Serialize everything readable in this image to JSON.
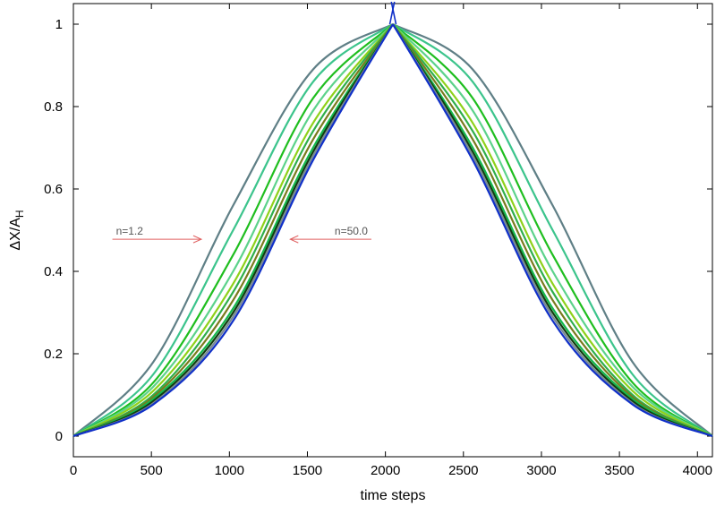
{
  "chart_data": {
    "type": "line",
    "title": "",
    "xlabel": "time steps",
    "ylabel": "ΔX/A_H",
    "ylabel_main": "ΔX/A",
    "ylabel_sub": "H",
    "xlim": [
      0,
      4096
    ],
    "ylim": [
      -0.05,
      1.05
    ],
    "xticks": [
      0,
      500,
      1000,
      1500,
      2000,
      2500,
      3000,
      3500,
      4000
    ],
    "yticks": [
      0,
      0.2,
      0.4,
      0.6,
      0.8,
      1
    ],
    "ytick_labels": [
      "0",
      "0.2",
      "0.4",
      "0.6",
      "0.8",
      "1"
    ],
    "grid": false,
    "peak_x": 2048,
    "series": [
      {
        "color": "#5f7f86",
        "x": [
          0,
          512,
          1024,
          1536,
          2048,
          2560,
          3072,
          3584,
          4096
        ],
        "values": [
          0,
          0.18,
          0.56,
          0.89,
          1,
          0.89,
          0.56,
          0.18,
          0
        ]
      },
      {
        "color": "#3cc48c",
        "x": [
          0,
          512,
          1024,
          1536,
          2048,
          2560,
          3072,
          3584,
          4096
        ],
        "values": [
          0,
          0.15,
          0.5,
          0.86,
          1,
          0.86,
          0.5,
          0.15,
          0
        ]
      },
      {
        "color": "#1fbe1f",
        "x": [
          0,
          512,
          1024,
          1536,
          2048,
          2560,
          3072,
          3584,
          4096
        ],
        "values": [
          0,
          0.13,
          0.44,
          0.82,
          1,
          0.82,
          0.44,
          0.13,
          0
        ]
      },
      {
        "color": "#5cd28a",
        "x": [
          0,
          512,
          1024,
          1536,
          2048,
          2560,
          3072,
          3584,
          4096
        ],
        "values": [
          0,
          0.12,
          0.4,
          0.79,
          1,
          0.79,
          0.4,
          0.12,
          0
        ]
      },
      {
        "color": "#8ed11a",
        "x": [
          0,
          512,
          1024,
          1536,
          2048,
          2560,
          3072,
          3584,
          4096
        ],
        "values": [
          0,
          0.11,
          0.37,
          0.76,
          1,
          0.76,
          0.37,
          0.11,
          0
        ]
      },
      {
        "color": "#2fae4a",
        "x": [
          0,
          512,
          1024,
          1536,
          2048,
          2560,
          3072,
          3584,
          4096
        ],
        "values": [
          0,
          0.1,
          0.35,
          0.74,
          1,
          0.74,
          0.35,
          0.1,
          0
        ]
      },
      {
        "color": "#7a7a1e",
        "x": [
          0,
          512,
          1024,
          1536,
          2048,
          2560,
          3072,
          3584,
          4096
        ],
        "values": [
          0,
          0.095,
          0.33,
          0.72,
          1,
          0.72,
          0.33,
          0.095,
          0
        ]
      },
      {
        "color": "#14b84c",
        "x": [
          0,
          512,
          1024,
          1536,
          2048,
          2560,
          3072,
          3584,
          4096
        ],
        "values": [
          0,
          0.09,
          0.31,
          0.7,
          1,
          0.7,
          0.31,
          0.09,
          0
        ]
      },
      {
        "color": "#0f3f0f",
        "x": [
          0,
          512,
          1024,
          1536,
          2048,
          2560,
          3072,
          3584,
          4096
        ],
        "values": [
          0,
          0.085,
          0.3,
          0.69,
          1,
          0.69,
          0.3,
          0.085,
          0
        ]
      },
      {
        "color": "#7a8a95",
        "x": [
          0,
          512,
          1024,
          1536,
          2048,
          2560,
          3072,
          3584,
          4096
        ],
        "values": [
          0,
          0.08,
          0.29,
          0.68,
          1,
          0.68,
          0.29,
          0.08,
          0
        ]
      },
      {
        "color": "#1030c8",
        "x": [
          0,
          512,
          1024,
          1536,
          2048,
          2560,
          3072,
          3584,
          4096
        ],
        "values": [
          0,
          0.077,
          0.28,
          0.67,
          1,
          0.67,
          0.28,
          0.077,
          0
        ]
      }
    ],
    "annotations": [
      {
        "text": "n=1.2",
        "arrow_from": [
          250,
          0.478
        ],
        "arrow_to": [
          820,
          0.478
        ],
        "color": "#e06060"
      },
      {
        "text": "n=50.0",
        "arrow_from": [
          1910,
          0.478
        ],
        "arrow_to": [
          1390,
          0.478
        ],
        "color": "#e06060"
      }
    ],
    "axis_color": "#000000"
  }
}
